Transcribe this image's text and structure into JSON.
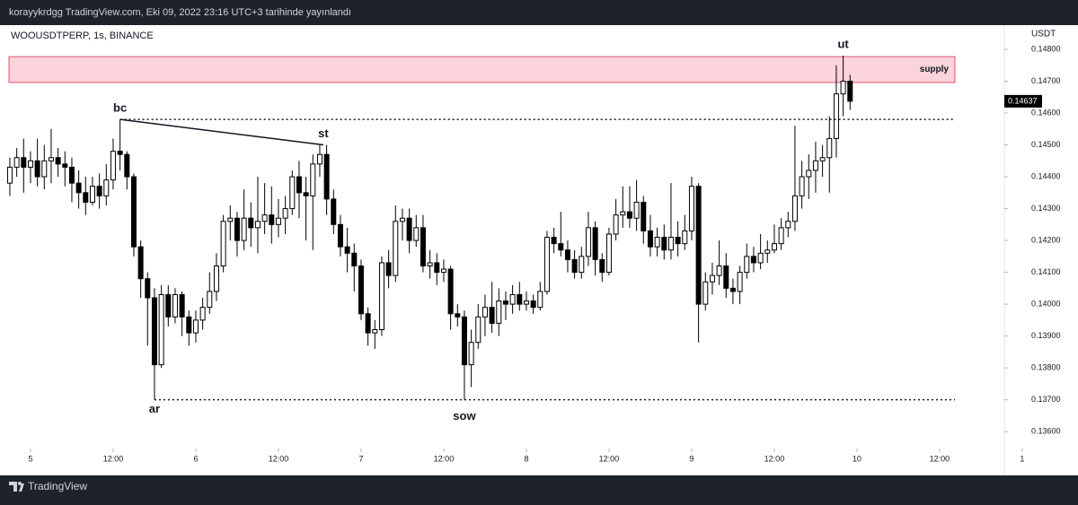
{
  "header": {
    "text": "korayykrdgg TradingView.com, Eki 09, 2022 23:16 UTC+3 tarihinde yayınlandı"
  },
  "footer": {
    "brand": "TradingView"
  },
  "chart_data": {
    "type": "candlestick",
    "title": "WOOUSDTPERP, 1s, BINANCE",
    "currency": "USDT",
    "up_color": "#ffffff",
    "down_color": "#000000",
    "wick_color": "#000000",
    "x": [
      -3,
      -2,
      -1,
      0,
      1,
      2,
      3,
      4,
      5,
      6,
      7,
      8,
      9,
      10,
      11,
      12,
      13,
      14,
      15,
      16,
      17,
      18,
      19,
      20,
      21,
      22,
      23,
      24,
      25,
      26,
      27,
      28,
      29,
      30,
      31,
      32,
      33,
      34,
      35,
      36,
      37,
      38,
      39,
      40,
      41,
      42,
      43,
      44,
      45,
      46,
      47,
      48,
      49,
      50,
      51,
      52,
      53,
      54,
      55,
      56,
      57,
      58,
      59,
      60,
      61,
      62,
      63,
      64,
      65,
      66,
      67,
      68,
      69,
      70,
      71,
      72,
      73,
      74,
      75,
      76,
      77,
      78,
      79,
      80,
      81,
      82,
      83,
      84,
      85,
      86,
      87,
      88,
      89,
      90,
      91,
      92,
      93,
      94,
      95,
      96,
      97,
      98,
      99,
      100,
      101,
      102,
      103,
      104,
      105,
      106,
      107,
      108,
      109,
      110,
      111,
      112,
      113,
      114,
      115,
      116,
      117,
      118,
      119
    ],
    "open": [
      0.1438,
      0.1443,
      0.1446,
      0.1443,
      0.1445,
      0.144,
      0.1445,
      0.1446,
      0.1444,
      0.1443,
      0.1438,
      0.1435,
      0.1432,
      0.1437,
      0.1434,
      0.1439,
      0.1448,
      0.1447,
      0.144,
      0.1418,
      0.1408,
      0.1402,
      0.1381,
      0.1403,
      0.1396,
      0.1403,
      0.1396,
      0.1391,
      0.1395,
      0.1399,
      0.1404,
      0.1412,
      0.1426,
      0.1427,
      0.142,
      0.1427,
      0.1424,
      0.1426,
      0.1428,
      0.1425,
      0.1427,
      0.143,
      0.144,
      0.1435,
      0.1434,
      0.1444,
      0.1447,
      0.1433,
      0.1425,
      0.1418,
      0.1416,
      0.1412,
      0.1397,
      0.1391,
      0.1392,
      0.1413,
      0.1409,
      0.1426,
      0.1427,
      0.142,
      0.1424,
      0.1412,
      0.1413,
      0.141,
      0.1411,
      0.1397,
      0.1396,
      0.1381,
      0.1388,
      0.1396,
      0.1399,
      0.1394,
      0.1401,
      0.14,
      0.1403,
      0.14,
      0.1401,
      0.1399,
      0.1404,
      0.1421,
      0.1419,
      0.1417,
      0.1414,
      0.141,
      0.1415,
      0.1424,
      0.1414,
      0.141,
      0.1422,
      0.1428,
      0.1429,
      0.1427,
      0.1432,
      0.1423,
      0.1418,
      0.1421,
      0.1417,
      0.1421,
      0.1419,
      0.1423,
      0.1437,
      0.14,
      0.1407,
      0.1409,
      0.1412,
      0.1405,
      0.1404,
      0.141,
      0.1415,
      0.1413,
      0.1416,
      0.1417,
      0.1419,
      0.1424,
      0.1426,
      0.1434,
      0.144,
      0.1442,
      0.1445,
      0.1446,
      0.1452,
      0.1466,
      0.147
    ],
    "close": [
      0.1443,
      0.1446,
      0.1443,
      0.1445,
      0.144,
      0.1445,
      0.1446,
      0.1444,
      0.1443,
      0.1438,
      0.1435,
      0.1432,
      0.1437,
      0.1434,
      0.1439,
      0.1448,
      0.1447,
      0.144,
      0.1418,
      0.1408,
      0.1402,
      0.1381,
      0.1403,
      0.1396,
      0.1403,
      0.1396,
      0.1391,
      0.1395,
      0.1399,
      0.1404,
      0.1412,
      0.1426,
      0.1427,
      0.142,
      0.1427,
      0.1424,
      0.1426,
      0.1428,
      0.1425,
      0.1427,
      0.143,
      0.144,
      0.1435,
      0.1434,
      0.1444,
      0.1447,
      0.1433,
      0.1425,
      0.1418,
      0.1416,
      0.1412,
      0.1397,
      0.1391,
      0.1392,
      0.1413,
      0.1409,
      0.1426,
      0.1427,
      0.142,
      0.1424,
      0.1412,
      0.1413,
      0.141,
      0.1411,
      0.1397,
      0.1396,
      0.1381,
      0.1388,
      0.1396,
      0.1399,
      0.1394,
      0.1401,
      0.14,
      0.1403,
      0.14,
      0.1401,
      0.1399,
      0.1404,
      0.1421,
      0.1419,
      0.1417,
      0.1414,
      0.141,
      0.1415,
      0.1424,
      0.1414,
      0.141,
      0.1422,
      0.1428,
      0.1429,
      0.1427,
      0.1432,
      0.1423,
      0.1418,
      0.1421,
      0.1417,
      0.1421,
      0.1419,
      0.1423,
      0.1437,
      0.14,
      0.1407,
      0.1409,
      0.1412,
      0.1405,
      0.1404,
      0.141,
      0.1415,
      0.1413,
      0.1416,
      0.1417,
      0.1419,
      0.1424,
      0.1426,
      0.1434,
      0.144,
      0.1442,
      0.1445,
      0.1446,
      0.1452,
      0.1466,
      0.147,
      0.14637
    ],
    "high": [
      0.1446,
      0.1449,
      0.1452,
      0.1448,
      0.1452,
      0.145,
      0.1455,
      0.1449,
      0.1448,
      0.1446,
      0.1442,
      0.144,
      0.144,
      0.1441,
      0.1444,
      0.1452,
      0.1458,
      0.1448,
      0.1441,
      0.142,
      0.141,
      0.1405,
      0.1406,
      0.1406,
      0.1405,
      0.1404,
      0.1398,
      0.1398,
      0.1402,
      0.141,
      0.1416,
      0.1428,
      0.1431,
      0.1429,
      0.1436,
      0.1432,
      0.144,
      0.1438,
      0.1437,
      0.1433,
      0.1434,
      0.1442,
      0.1445,
      0.144,
      0.1447,
      0.145,
      0.145,
      0.1436,
      0.1428,
      0.1424,
      0.1419,
      0.1414,
      0.1399,
      0.1395,
      0.1415,
      0.1417,
      0.1431,
      0.143,
      0.143,
      0.1428,
      0.1428,
      0.1417,
      0.1416,
      0.1414,
      0.1412,
      0.14,
      0.1398,
      0.1392,
      0.14,
      0.1403,
      0.1407,
      0.1405,
      0.1404,
      0.1406,
      0.1407,
      0.1404,
      0.1403,
      0.1407,
      0.1423,
      0.1424,
      0.1429,
      0.142,
      0.1417,
      0.1418,
      0.1429,
      0.1426,
      0.1416,
      0.1424,
      0.1433,
      0.1437,
      0.1437,
      0.1439,
      0.1434,
      0.1428,
      0.1424,
      0.1425,
      0.1438,
      0.1426,
      0.1428,
      0.144,
      0.1438,
      0.141,
      0.1413,
      0.142,
      0.1416,
      0.1408,
      0.1412,
      0.1419,
      0.1418,
      0.1422,
      0.142,
      0.1425,
      0.1427,
      0.1429,
      0.1456,
      0.1445,
      0.1447,
      0.1451,
      0.145,
      0.1459,
      0.1475,
      0.1478,
      0.1472
    ],
    "low": [
      0.1434,
      0.144,
      0.1435,
      0.1438,
      0.1437,
      0.1436,
      0.1438,
      0.144,
      0.1437,
      0.1432,
      0.143,
      0.1428,
      0.1431,
      0.143,
      0.1431,
      0.1436,
      0.1442,
      0.1436,
      0.1415,
      0.1402,
      0.1387,
      0.137,
      0.138,
      0.1393,
      0.1394,
      0.139,
      0.1387,
      0.1388,
      0.1392,
      0.1397,
      0.1401,
      0.141,
      0.142,
      0.1415,
      0.1417,
      0.1418,
      0.1416,
      0.1422,
      0.1419,
      0.1421,
      0.1422,
      0.1428,
      0.1427,
      0.142,
      0.1417,
      0.144,
      0.1428,
      0.1422,
      0.1415,
      0.141,
      0.1404,
      0.1395,
      0.1387,
      0.1386,
      0.139,
      0.1405,
      0.1407,
      0.142,
      0.1416,
      0.1418,
      0.141,
      0.1408,
      0.1406,
      0.1407,
      0.1392,
      0.1393,
      0.137,
      0.1374,
      0.1386,
      0.139,
      0.1391,
      0.139,
      0.1395,
      0.1397,
      0.1398,
      0.1398,
      0.1397,
      0.1398,
      0.1403,
      0.1416,
      0.1415,
      0.141,
      0.1408,
      0.1408,
      0.1412,
      0.1409,
      0.1407,
      0.1409,
      0.142,
      0.1424,
      0.1424,
      0.1423,
      0.1419,
      0.1415,
      0.1415,
      0.1414,
      0.1414,
      0.1415,
      0.1417,
      0.142,
      0.1388,
      0.1398,
      0.1403,
      0.1406,
      0.1402,
      0.14,
      0.14,
      0.1408,
      0.141,
      0.1411,
      0.1413,
      0.1416,
      0.1417,
      0.1421,
      0.1423,
      0.143,
      0.1433,
      0.1435,
      0.144,
      0.1435,
      0.1446,
      0.1459,
      0.1461
    ],
    "xlim": [
      -4.43,
      141.4
    ],
    "xticks": [
      {
        "value": 0,
        "label": "5"
      },
      {
        "value": 12,
        "label": "12:00"
      },
      {
        "value": 24,
        "label": "6"
      },
      {
        "value": 36,
        "label": "12:00"
      },
      {
        "value": 48,
        "label": "7"
      },
      {
        "value": 60,
        "label": "12:00"
      },
      {
        "value": 72,
        "label": "8"
      },
      {
        "value": 84,
        "label": "12:00"
      },
      {
        "value": 96,
        "label": "9"
      },
      {
        "value": 108,
        "label": "12:00"
      },
      {
        "value": 120,
        "label": "10"
      },
      {
        "value": 132,
        "label": "12:00"
      },
      {
        "value": 144,
        "label": "1"
      }
    ],
    "ylim": [
      0.13547,
      0.14876
    ],
    "yticks": [
      {
        "value": 0.136,
        "label": "0.13600"
      },
      {
        "value": 0.137,
        "label": "0.13700"
      },
      {
        "value": 0.138,
        "label": "0.13800"
      },
      {
        "value": 0.139,
        "label": "0.13900"
      },
      {
        "value": 0.14,
        "label": "0.14000"
      },
      {
        "value": 0.141,
        "label": "0.14100"
      },
      {
        "value": 0.142,
        "label": "0.14200"
      },
      {
        "value": 0.143,
        "label": "0.14300"
      },
      {
        "value": 0.144,
        "label": "0.14400"
      },
      {
        "value": 0.145,
        "label": "0.14500"
      },
      {
        "value": 0.146,
        "label": "0.14600"
      },
      {
        "value": 0.147,
        "label": "0.14700"
      },
      {
        "value": 0.148,
        "label": "0.14800"
      }
    ],
    "supply_zone": {
      "label": "supply",
      "top": 0.14777,
      "bottom": 0.14696,
      "color": "#fbd3da",
      "border": "#e0506c"
    },
    "annotations": [
      "bc",
      "st",
      "ar",
      "sow",
      "ut"
    ]
  }
}
